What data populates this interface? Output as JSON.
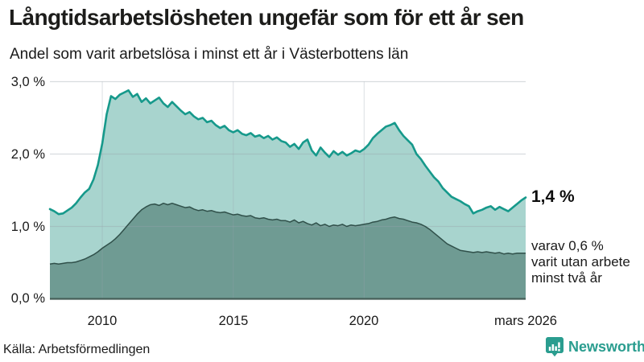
{
  "header": {
    "title": "Långtidsarbetslösheten ungefär som för ett år sen",
    "subtitle": "Andel som varit arbetslösa i minst ett år i Västerbottens län"
  },
  "chart_data": {
    "type": "area",
    "title": "Långtidsarbetslösheten ungefär som för ett år sen",
    "subtitle": "Andel som varit arbetslösa i minst ett år i Västerbottens län",
    "unit": "%",
    "grid": true,
    "legend_position": "none",
    "x_range": [
      2008.0,
      2026.1667
    ],
    "x_start": 2008.0,
    "x_step": 0.1666667,
    "ylim": [
      0,
      3
    ],
    "y_tick_values": [
      3,
      2,
      1,
      0
    ],
    "y_tick_labels": [
      "3,0 %",
      "2,0 %",
      "1,0 %",
      "0,0 %"
    ],
    "x_tick_values": [
      2010,
      2015,
      2020,
      2026.1667
    ],
    "x_tick_labels": [
      "2010",
      "2015",
      "2020",
      "mars 2026"
    ],
    "series": [
      {
        "name": "Andel arbetslösa minst ett år",
        "end_value": 1.4,
        "end_label": "1,4 %",
        "values": [
          1.24,
          1.21,
          1.17,
          1.18,
          1.22,
          1.26,
          1.32,
          1.4,
          1.47,
          1.52,
          1.65,
          1.85,
          2.15,
          2.55,
          2.8,
          2.76,
          2.82,
          2.85,
          2.88,
          2.79,
          2.83,
          2.72,
          2.77,
          2.7,
          2.74,
          2.78,
          2.7,
          2.65,
          2.72,
          2.66,
          2.6,
          2.55,
          2.58,
          2.52,
          2.48,
          2.5,
          2.44,
          2.46,
          2.4,
          2.36,
          2.39,
          2.33,
          2.3,
          2.33,
          2.28,
          2.26,
          2.29,
          2.24,
          2.26,
          2.22,
          2.25,
          2.2,
          2.23,
          2.18,
          2.16,
          2.1,
          2.14,
          2.07,
          2.16,
          2.2,
          2.05,
          1.98,
          2.09,
          2.02,
          1.96,
          2.04,
          1.99,
          2.03,
          1.98,
          2.01,
          2.05,
          2.03,
          2.07,
          2.13,
          2.22,
          2.28,
          2.33,
          2.38,
          2.4,
          2.43,
          2.33,
          2.25,
          2.19,
          2.13,
          2.0,
          1.93,
          1.84,
          1.76,
          1.68,
          1.62,
          1.53,
          1.47,
          1.41,
          1.38,
          1.35,
          1.31,
          1.28,
          1.18,
          1.21,
          1.23,
          1.26,
          1.28,
          1.23,
          1.27,
          1.24,
          1.21,
          1.26,
          1.31,
          1.36,
          1.4
        ]
      },
      {
        "name": "Andel utan arbete minst två år",
        "end_value": 0.6,
        "values": [
          0.48,
          0.49,
          0.48,
          0.49,
          0.5,
          0.5,
          0.51,
          0.53,
          0.55,
          0.58,
          0.61,
          0.65,
          0.7,
          0.74,
          0.78,
          0.83,
          0.89,
          0.96,
          1.03,
          1.1,
          1.17,
          1.23,
          1.27,
          1.3,
          1.31,
          1.29,
          1.32,
          1.3,
          1.32,
          1.3,
          1.28,
          1.26,
          1.27,
          1.24,
          1.22,
          1.23,
          1.21,
          1.22,
          1.2,
          1.19,
          1.2,
          1.18,
          1.16,
          1.17,
          1.15,
          1.14,
          1.15,
          1.12,
          1.11,
          1.12,
          1.1,
          1.09,
          1.1,
          1.08,
          1.08,
          1.06,
          1.09,
          1.05,
          1.07,
          1.04,
          1.02,
          1.05,
          1.01,
          1.03,
          1.0,
          1.02,
          1.01,
          1.03,
          1.0,
          1.02,
          1.01,
          1.02,
          1.03,
          1.04,
          1.06,
          1.07,
          1.09,
          1.1,
          1.12,
          1.13,
          1.11,
          1.1,
          1.08,
          1.06,
          1.05,
          1.03,
          1.0,
          0.96,
          0.91,
          0.86,
          0.81,
          0.76,
          0.73,
          0.7,
          0.67,
          0.66,
          0.65,
          0.64,
          0.65,
          0.64,
          0.65,
          0.64,
          0.63,
          0.64,
          0.62,
          0.63,
          0.62,
          0.63,
          0.63,
          0.63
        ]
      }
    ]
  },
  "annotations": {
    "end_label": "1,4 %",
    "subset_lines": [
      "varav 0,6 %",
      "varit utan arbete",
      "minst två år"
    ]
  },
  "footer": {
    "source": "Källa: Arbetsförmedlingen",
    "brand": "Newsworthy",
    "brand_icon": "newsworthy-speech-bubble-chart-icon"
  },
  "colors": {
    "line_total": "#16998b",
    "fill_total": "#a8d4ce",
    "line_subset": "#30504a",
    "fill_subset": "#6f9b93",
    "baseline": "#465f59",
    "gridline": "#98a2ab",
    "brand": "#2a9d8f",
    "title": "#1d1d1b",
    "text": "#1a1a1a"
  }
}
